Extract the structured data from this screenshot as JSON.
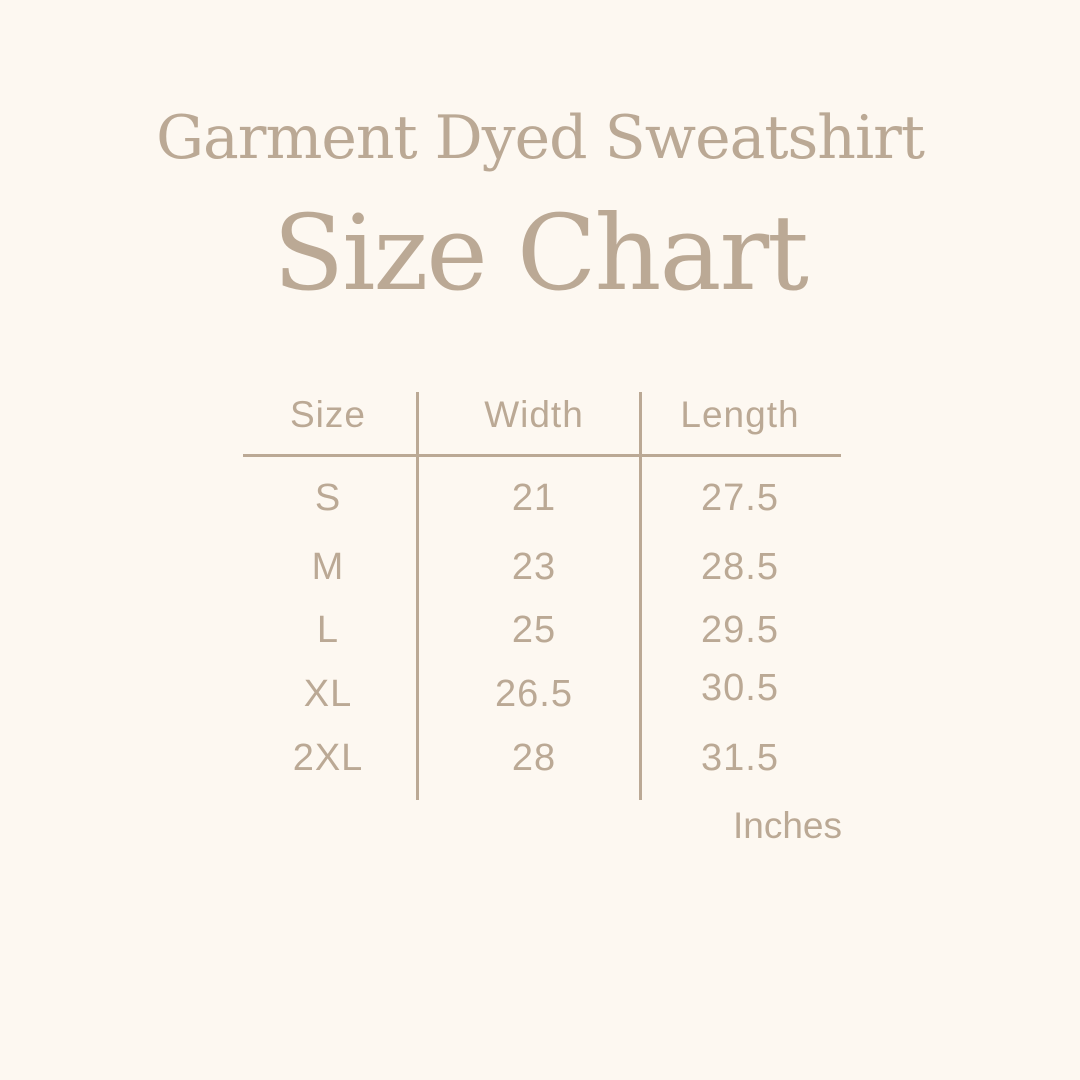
{
  "title": "Garment Dyed Sweatshirt",
  "subtitle": "Size Chart",
  "colors": {
    "background": "#fdf8f1",
    "text": "#bba995"
  },
  "table": {
    "headers": [
      "Size",
      "Width",
      "Length"
    ],
    "rows": [
      [
        "S",
        "21",
        "27.5"
      ],
      [
        "M",
        "23",
        "28.5"
      ],
      [
        "L",
        "25",
        "29.5"
      ],
      [
        "XL",
        "26.5",
        "30.5"
      ],
      [
        "2XL",
        "28",
        "31.5"
      ]
    ]
  },
  "unit": "Inches"
}
